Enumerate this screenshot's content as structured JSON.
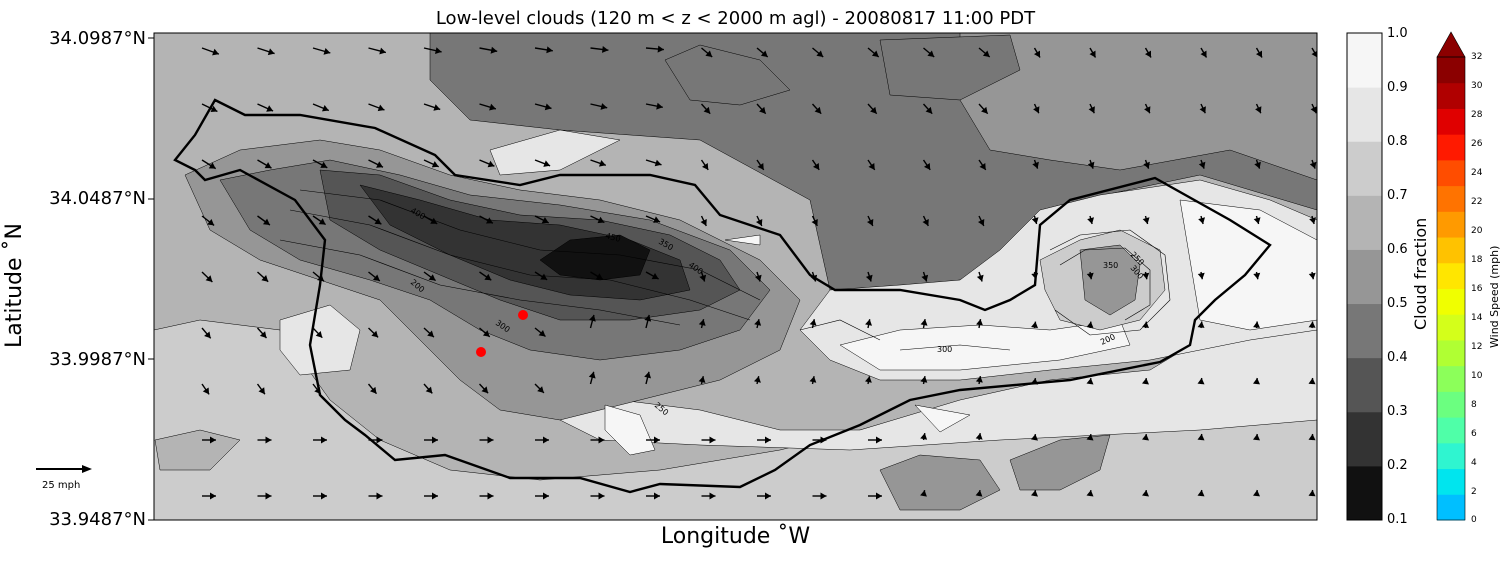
{
  "chart_data": {
    "type": "heatmap",
    "title": "Low-level clouds (120 m < z < 2000 m agl) - 20080817 11:00 PDT",
    "xlabel": "Longitude $^\\circ$W",
    "xlabel_display": "Longitude ˚W",
    "ylabel_display": "Latitude ˚N",
    "y_ticks": [
      "34.0987°N",
      "34.0487°N",
      "33.9987°N",
      "33.9487°N"
    ],
    "y_tick_values": [
      34.0987,
      34.0487,
      33.9987,
      33.9487
    ],
    "ylim": [
      33.9487,
      34.0987
    ],
    "cloud_fraction_colorbar": {
      "label": "Cloud fraction",
      "levels": [
        0.1,
        0.2,
        0.3,
        0.4,
        0.5,
        0.6,
        0.7,
        0.8,
        0.9,
        1.0
      ],
      "tick_labels": [
        "1.0",
        "0.9",
        "0.8",
        "0.7",
        "0.6",
        "0.5",
        "0.4",
        "0.3",
        "0.2",
        "0.1"
      ],
      "colors": [
        "#111111",
        "#333333",
        "#555555",
        "#777777",
        "#969696",
        "#b4b4b4",
        "#cccccc",
        "#e6e6e6",
        "#f6f6f6"
      ]
    },
    "wind_colorbar": {
      "label": "Wind Speed (mph)",
      "tick_labels": [
        "32",
        "30",
        "28",
        "26",
        "24",
        "22",
        "20",
        "18",
        "16",
        "14",
        "12",
        "10",
        "8",
        "6",
        "4",
        "2",
        "0"
      ],
      "colors": [
        "#00bfff",
        "#00e5ee",
        "#2ff5d0",
        "#4fffa8",
        "#6bff80",
        "#8cff5a",
        "#b0ff33",
        "#d4ff1a",
        "#f0ff00",
        "#ffe600",
        "#ffc200",
        "#ff9a00",
        "#ff7300",
        "#ff4d00",
        "#ff1a00",
        "#e00000",
        "#b00000",
        "#8b0000"
      ]
    },
    "reference_vector": "25 mph",
    "contour_labels": [
      "400",
      "450",
      "350",
      "400",
      "200",
      "300",
      "250",
      "350",
      "300",
      "250",
      "300",
      "200"
    ],
    "markers": [
      {
        "type": "red-dot"
      },
      {
        "type": "red-dot"
      }
    ]
  }
}
